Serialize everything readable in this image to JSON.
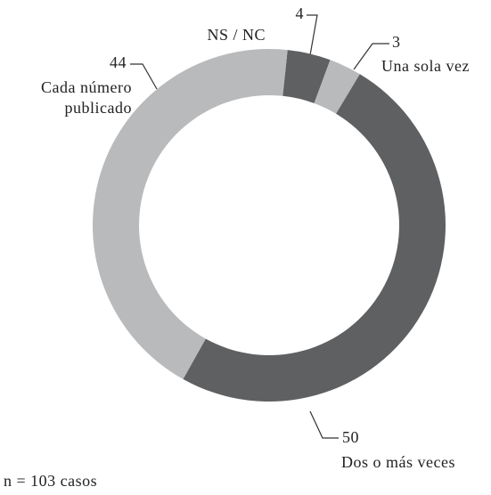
{
  "chart_data": {
    "type": "donut",
    "categories": [
      "NS / NC",
      "Una sola vez",
      "Dos o más veces",
      "Cada número publicado"
    ],
    "values": [
      4,
      3,
      50,
      44
    ],
    "colors": [
      "#5f6062",
      "#b9babc",
      "#5f6062",
      "#b9babc"
    ],
    "annotation": "n = 103 casos"
  }
}
